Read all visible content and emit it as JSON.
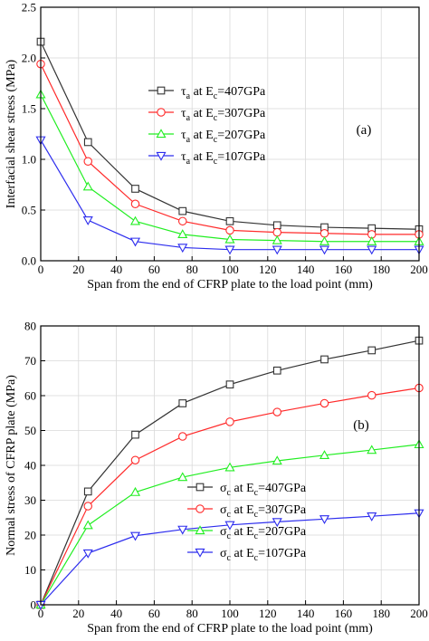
{
  "chart_data": [
    {
      "type": "line",
      "panel_label": "(a)",
      "xlabel": "Span from the end of CFRP plate to the load point (mm)",
      "ylabel": "Interfacial shear stress (MPa)",
      "xlim": [
        0,
        200
      ],
      "ylim": [
        0,
        2.5
      ],
      "xticks": [
        "0",
        "20",
        "40",
        "60",
        "80",
        "100",
        "120",
        "140",
        "160",
        "180",
        "200"
      ],
      "yticks": [
        "0.0",
        "0.5",
        "1.0",
        "1.5",
        "2.0",
        "2.5"
      ],
      "grid": true,
      "legend_position": "center",
      "x": [
        0,
        25,
        50,
        75,
        100,
        125,
        150,
        175,
        200
      ],
      "series": [
        {
          "name": "τa at Ec=407GPa",
          "sym": "τ",
          "sub": "a",
          "ec": "407",
          "color": "#333333",
          "marker": "square",
          "values": [
            2.16,
            1.17,
            0.71,
            0.49,
            0.39,
            0.35,
            0.33,
            0.32,
            0.31
          ]
        },
        {
          "name": "τa at Ec=307GPa",
          "sym": "τ",
          "sub": "a",
          "ec": "307",
          "color": "#ff2a2a",
          "marker": "circle",
          "values": [
            1.94,
            0.98,
            0.56,
            0.39,
            0.3,
            0.28,
            0.27,
            0.26,
            0.26
          ]
        },
        {
          "name": "τa at Ec=207GPa",
          "sym": "τ",
          "sub": "a",
          "ec": "207",
          "color": "#22ee22",
          "marker": "triangle-up",
          "values": [
            1.64,
            0.73,
            0.39,
            0.26,
            0.21,
            0.2,
            0.19,
            0.19,
            0.19
          ]
        },
        {
          "name": "τa at Ec=107GPa",
          "sym": "τ",
          "sub": "a",
          "ec": "107",
          "color": "#2d2dee",
          "marker": "triangle-down",
          "values": [
            1.19,
            0.4,
            0.19,
            0.13,
            0.11,
            0.11,
            0.11,
            0.11,
            0.11
          ]
        }
      ]
    },
    {
      "type": "line",
      "panel_label": "(b)",
      "xlabel": "Span from the end of CFRP plate to the load point (mm)",
      "ylabel": "Normal stress of CFRP plate (MPa)",
      "xlim": [
        0,
        200
      ],
      "ylim": [
        0,
        80
      ],
      "xticks": [
        "0",
        "20",
        "40",
        "60",
        "80",
        "100",
        "120",
        "140",
        "160",
        "180",
        "200"
      ],
      "yticks": [
        "0",
        "10",
        "20",
        "30",
        "40",
        "50",
        "60",
        "70",
        "80"
      ],
      "grid": true,
      "legend_position": "bottom-right",
      "x": [
        0,
        25,
        50,
        75,
        100,
        125,
        150,
        175,
        200
      ],
      "series": [
        {
          "name": "σc at Ec=407GPa",
          "sym": "σ",
          "sub": "c",
          "ec": "407",
          "color": "#333333",
          "marker": "square",
          "values": [
            0,
            32.5,
            48.8,
            57.8,
            63.2,
            67.2,
            70.4,
            73.0,
            75.8
          ]
        },
        {
          "name": "σc at Ec=307GPa",
          "sym": "σ",
          "sub": "c",
          "ec": "307",
          "color": "#ff2a2a",
          "marker": "circle",
          "values": [
            0,
            28.3,
            41.5,
            48.3,
            52.5,
            55.3,
            57.8,
            60.1,
            62.2
          ]
        },
        {
          "name": "σc at Ec=207GPa",
          "sym": "σ",
          "sub": "c",
          "ec": "207",
          "color": "#22ee22",
          "marker": "triangle-up",
          "values": [
            0,
            22.8,
            32.3,
            36.6,
            39.4,
            41.3,
            42.9,
            44.4,
            46.0
          ]
        },
        {
          "name": "σc at Ec=107GPa",
          "sym": "σ",
          "sub": "c",
          "ec": "107",
          "color": "#2d2dee",
          "marker": "triangle-down",
          "values": [
            0,
            14.8,
            19.8,
            21.6,
            22.9,
            23.8,
            24.6,
            25.4,
            26.3
          ]
        }
      ]
    }
  ]
}
